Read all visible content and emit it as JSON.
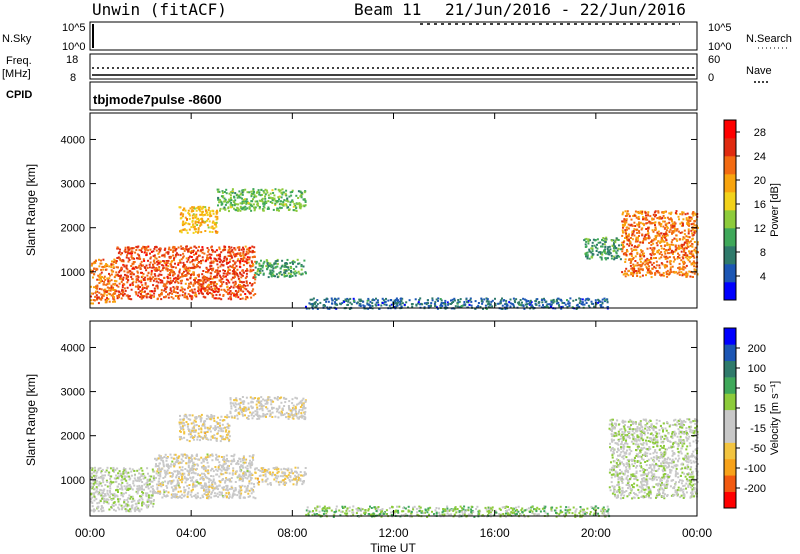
{
  "header": {
    "station": "Unwin (fitACF)",
    "beam": "Beam 11",
    "daterange": "21/Jun/2016 - 22/Jun/2016"
  },
  "top_panels": {
    "nsky_label": "N.Sky",
    "nsky_ticks": [
      "10^5",
      "10^0"
    ],
    "nsearch_label": "N.Search",
    "nsearch_ticks": [
      "10^5",
      "10^0"
    ],
    "freq_label": "Freq.",
    "freq_unit": "[MHz]",
    "freq_ticks": [
      "18",
      "8"
    ],
    "nave_label": "Nave",
    "nave_ticks": [
      "60",
      "0"
    ],
    "cpid_label": "CPID",
    "cpid_value": "tbjmode7pulse -8600"
  },
  "chart_data": [
    {
      "type": "heatmap",
      "title": "",
      "xlabel": "Time UT",
      "ylabel": "Slant Range [km]",
      "x_ticks": [
        "00:00",
        "04:00",
        "08:00",
        "12:00",
        "16:00",
        "20:00",
        "00:00"
      ],
      "xlim": [
        0,
        24
      ],
      "y_ticks": [
        "1000",
        "2000",
        "3000",
        "4000"
      ],
      "ylim": [
        180,
        4600
      ],
      "colorbar": {
        "label": "Power [dB]",
        "ticks": [
          "4",
          "8",
          "12",
          "16",
          "20",
          "24",
          "28"
        ],
        "range": [
          0,
          30
        ],
        "colors": [
          "#0000ff",
          "#1c56b4",
          "#2f7a6b",
          "#3fa85a",
          "#8dcb3b",
          "#f2d21a",
          "#f8a40e",
          "#f36b12",
          "#e02b10",
          "#ff0000"
        ]
      },
      "features": [
        {
          "t": [
            0.0,
            1.0
          ],
          "r": [
            300,
            1300
          ],
          "value": 22
        },
        {
          "t": [
            1.0,
            6.5
          ],
          "r": [
            400,
            1600
          ],
          "value": 24
        },
        {
          "t": [
            3.5,
            5.0
          ],
          "r": [
            1900,
            2500
          ],
          "value": 18
        },
        {
          "t": [
            5.0,
            8.5
          ],
          "r": [
            2400,
            2900
          ],
          "value": 12
        },
        {
          "t": [
            6.5,
            8.5
          ],
          "r": [
            900,
            1300
          ],
          "value": 10
        },
        {
          "t": [
            8.5,
            20.5
          ],
          "r": [
            180,
            420
          ],
          "value": 6
        },
        {
          "t": [
            19.5,
            21.0
          ],
          "r": [
            1300,
            1800
          ],
          "value": 10
        },
        {
          "t": [
            21.0,
            24.0
          ],
          "r": [
            900,
            2400
          ],
          "value": 22
        }
      ]
    },
    {
      "type": "heatmap",
      "title": "",
      "xlabel": "Time UT",
      "ylabel": "Slant Range [km]",
      "x_ticks": [
        "00:00",
        "04:00",
        "08:00",
        "12:00",
        "16:00",
        "20:00",
        "00:00"
      ],
      "xlim": [
        0,
        24
      ],
      "y_ticks": [
        "1000",
        "2000",
        "3000",
        "4000"
      ],
      "ylim": [
        180,
        4600
      ],
      "colorbar": {
        "label": "Velocity [m s⁻¹]",
        "ticks": [
          "200",
          "100",
          "50",
          "15",
          "-15",
          "-50",
          "-100",
          "-200"
        ],
        "range": [
          -250,
          250
        ],
        "colors": [
          "#ff0000",
          "#f25a10",
          "#f7a21a",
          "#f2c440",
          "#c8c8c8",
          "#c8c8c8",
          "#8dcb3b",
          "#3fa85a",
          "#2f7a6b",
          "#1c56b4",
          "#0000ff"
        ]
      },
      "features": [
        {
          "t": [
            0.0,
            2.5
          ],
          "r": [
            300,
            1300
          ],
          "value": 0
        },
        {
          "t": [
            2.5,
            6.5
          ],
          "r": [
            600,
            1600
          ],
          "value": -30
        },
        {
          "t": [
            3.5,
            5.5
          ],
          "r": [
            1900,
            2500
          ],
          "value": -60
        },
        {
          "t": [
            5.5,
            8.5
          ],
          "r": [
            2400,
            2900
          ],
          "value": -40
        },
        {
          "t": [
            6.5,
            8.5
          ],
          "r": [
            900,
            1300
          ],
          "value": -60
        },
        {
          "t": [
            8.5,
            20.5
          ],
          "r": [
            180,
            420
          ],
          "value": 45
        },
        {
          "t": [
            20.5,
            24.0
          ],
          "r": [
            600,
            2400
          ],
          "value": 0
        }
      ]
    }
  ]
}
